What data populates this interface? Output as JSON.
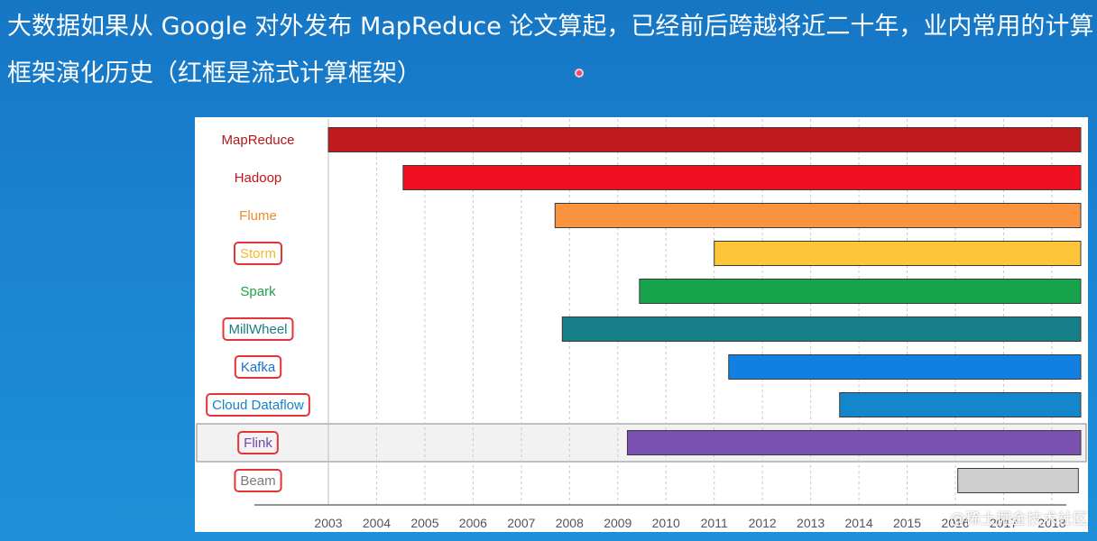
{
  "slide": {
    "title": "大数据如果从 Google 对外发布 MapReduce 论文算起，已经前后跨越将近二十年，业内常用的计算框架演化历史（红框是流式计算框架）"
  },
  "watermark": "@稀土掘金技术社区",
  "chart_data": {
    "type": "bar",
    "orientation": "horizontal-timeline",
    "title": "",
    "xlabel": "",
    "ylabel": "",
    "x_ticks": [
      "2003",
      "2004",
      "2005",
      "2006",
      "2007",
      "2008",
      "2009",
      "2010",
      "2011",
      "2012",
      "2013",
      "2014",
      "2015",
      "2016",
      "2017",
      "2018"
    ],
    "xlim": [
      2003,
      2018.6
    ],
    "series": [
      {
        "name": "MapReduce",
        "start": 2003.0,
        "end": 2018.6,
        "color": "#c0191e",
        "label_color": "#b0181c",
        "streaming": false
      },
      {
        "name": "Hadoop",
        "start": 2004.55,
        "end": 2018.6,
        "color": "#ef1122",
        "label_color": "#c8141e",
        "streaming": false
      },
      {
        "name": "Flume",
        "start": 2007.7,
        "end": 2018.6,
        "color": "#fb9440",
        "label_color": "#f08a2c",
        "streaming": false
      },
      {
        "name": "Storm",
        "start": 2011.0,
        "end": 2018.6,
        "color": "#fec53a",
        "label_color": "#f4b92a",
        "streaming": true
      },
      {
        "name": "Spark",
        "start": 2009.45,
        "end": 2018.6,
        "color": "#17a34c",
        "label_color": "#23a048",
        "streaming": false
      },
      {
        "name": "MillWheel",
        "start": 2007.85,
        "end": 2018.6,
        "color": "#177f88",
        "label_color": "#1a7e87",
        "streaming": true
      },
      {
        "name": "Kafka",
        "start": 2011.3,
        "end": 2018.6,
        "color": "#1280e0",
        "label_color": "#1773c6",
        "streaming": true
      },
      {
        "name": "Cloud Dataflow",
        "start": 2013.6,
        "end": 2018.6,
        "color": "#1487cc",
        "label_color": "#1583c4",
        "streaming": true
      },
      {
        "name": "Flink",
        "start": 2009.2,
        "end": 2018.6,
        "color": "#7a50b0",
        "label_color": "#7347a8",
        "streaming": true,
        "highlighted_row": true
      },
      {
        "name": "Beam",
        "start": 2016.05,
        "end": 2018.55,
        "color": "#cfcfcf",
        "label_color": "#7b7b7b",
        "streaming": true
      }
    ]
  }
}
